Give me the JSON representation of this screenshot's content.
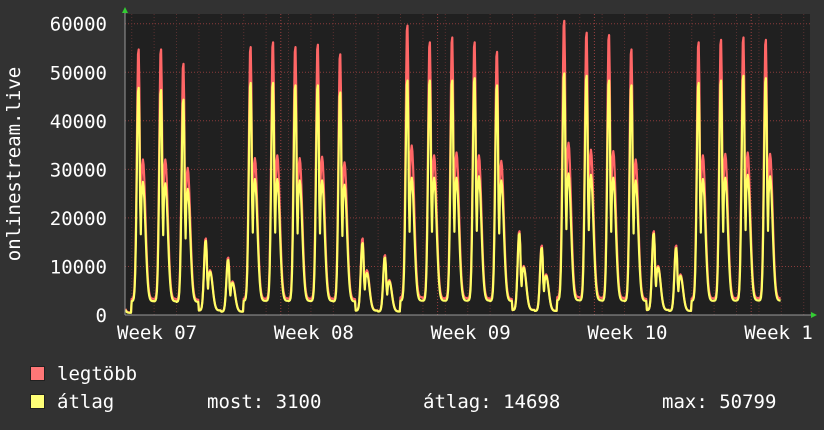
{
  "chart_data": {
    "type": "area",
    "ylabel": "onlinestream.live",
    "ylim": [
      0,
      62000
    ],
    "yticks": [
      0,
      10000,
      20000,
      30000,
      40000,
      50000,
      60000
    ],
    "xticks": [
      "Week 07",
      "Week 08",
      "Week 09",
      "Week 10",
      "Week 1"
    ],
    "grid": true,
    "series": [
      {
        "name": "legtöbb",
        "color": "#ff6666",
        "daily_peaks": [
          9000,
          55500,
          55500,
          52500,
          16000,
          12000,
          56000,
          57000,
          56000,
          56500,
          54500,
          16000,
          12500,
          60500,
          57000,
          58000,
          57000,
          55000,
          17500,
          14500,
          61500,
          59000,
          58500,
          55500,
          17500,
          14500,
          57000,
          57500,
          58000,
          57500
        ]
      },
      {
        "name": "átlag",
        "color": "#ffff66",
        "daily_peaks": [
          7500,
          47500,
          47000,
          45000,
          15500,
          11500,
          48500,
          48500,
          48000,
          48000,
          46500,
          15000,
          12000,
          49000,
          49000,
          49000,
          49500,
          48000,
          17000,
          14000,
          50500,
          50000,
          49000,
          48000,
          17000,
          14000,
          48500,
          49000,
          50000,
          49500
        ]
      }
    ]
  },
  "legend": {
    "max_label": "legtöbb",
    "avg_label": "átlag",
    "now": "most: 3100",
    "avg": "átlag: 14698",
    "max": "max: 50799"
  }
}
